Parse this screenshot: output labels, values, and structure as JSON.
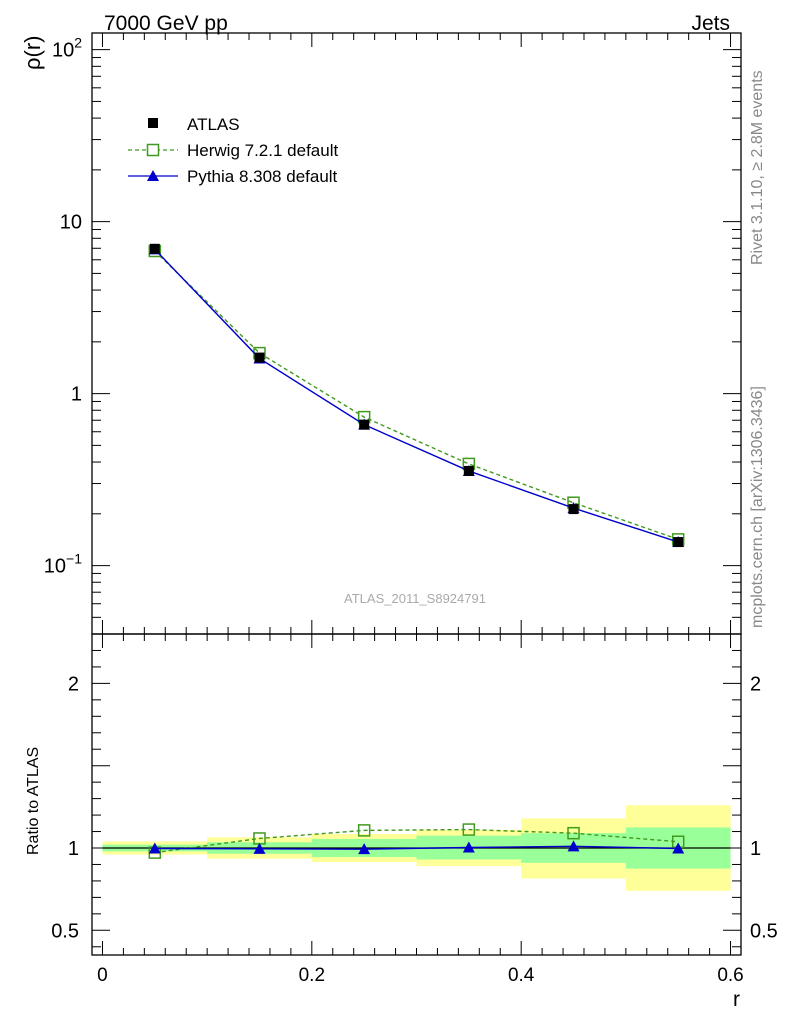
{
  "header": {
    "left": "7000 GeV pp",
    "right": "Jets"
  },
  "side_labels": {
    "rivet": "Rivet 3.1.10, ≥ 2.8M events",
    "mcplots": "mcplots.cern.ch [arXiv:1306.3436]"
  },
  "watermark": "ATLAS_2011_S8924791",
  "chart_data": [
    {
      "type": "line",
      "panel": "main",
      "ylabel": "ρ(r)",
      "xlabel": "",
      "yscale": "log",
      "xlim": [
        -0.01,
        0.61
      ],
      "ylim": [
        0.04,
        125
      ],
      "x": [
        0.05,
        0.15,
        0.25,
        0.35,
        0.45,
        0.55
      ],
      "y_tick_labels": [
        "10⁻¹",
        "1",
        "10",
        "10²"
      ],
      "legend_position": "top-left",
      "series": [
        {
          "name": "ATLAS",
          "marker": "filled-square",
          "color": "#000000",
          "values": [
            6.95,
            1.62,
            0.66,
            0.355,
            0.213,
            0.137
          ]
        },
        {
          "name": "Herwig 7.2.1 default",
          "marker": "open-square",
          "line": "dashed",
          "color": "#3f9a1f",
          "values": [
            6.75,
            1.72,
            0.73,
            0.39,
            0.232,
            0.142
          ]
        },
        {
          "name": "Pythia 8.308 default",
          "marker": "filled-triangle",
          "line": "solid",
          "color": "#0000cc",
          "values": [
            6.9,
            1.6,
            0.66,
            0.355,
            0.216,
            0.137
          ]
        }
      ]
    },
    {
      "type": "line",
      "panel": "ratio",
      "ylabel": "Ratio to ATLAS",
      "xlabel": "r",
      "xlim": [
        -0.01,
        0.61
      ],
      "ylim": [
        0.35,
        2.3
      ],
      "x_ticks": [
        0,
        0.2,
        0.4,
        0.6
      ],
      "x_tick_labels": [
        "0",
        "0.2",
        "0.4",
        "0.6"
      ],
      "y_ticks": [
        0.5,
        1,
        2
      ],
      "y_tick_labels": [
        "0.5",
        "1",
        "2"
      ],
      "bin_edges": [
        0.0,
        0.1,
        0.2,
        0.3,
        0.4,
        0.5,
        0.6
      ],
      "band_inner": {
        "color": "#99ff99",
        "low": [
          0.98,
          0.965,
          0.945,
          0.93,
          0.91,
          0.875
        ],
        "high": [
          1.02,
          1.035,
          1.055,
          1.075,
          1.09,
          1.125
        ]
      },
      "band_outer": {
        "color": "#ffff99",
        "low": [
          0.96,
          0.935,
          0.915,
          0.89,
          0.815,
          0.74
        ],
        "high": [
          1.04,
          1.065,
          1.085,
          1.11,
          1.18,
          1.26
        ]
      },
      "x": [
        0.05,
        0.15,
        0.25,
        0.35,
        0.45,
        0.55
      ],
      "series": [
        {
          "name": "Herwig 7.2.1 default",
          "marker": "open-square",
          "line": "dashed",
          "color": "#3f9a1f",
          "values": [
            0.972,
            1.058,
            1.107,
            1.112,
            1.09,
            1.038
          ]
        },
        {
          "name": "Pythia 8.308 default",
          "marker": "filled-triangle",
          "line": "solid",
          "color": "#0000cc",
          "values": [
            0.997,
            0.995,
            0.993,
            1.003,
            1.01,
            0.997
          ]
        }
      ]
    }
  ]
}
